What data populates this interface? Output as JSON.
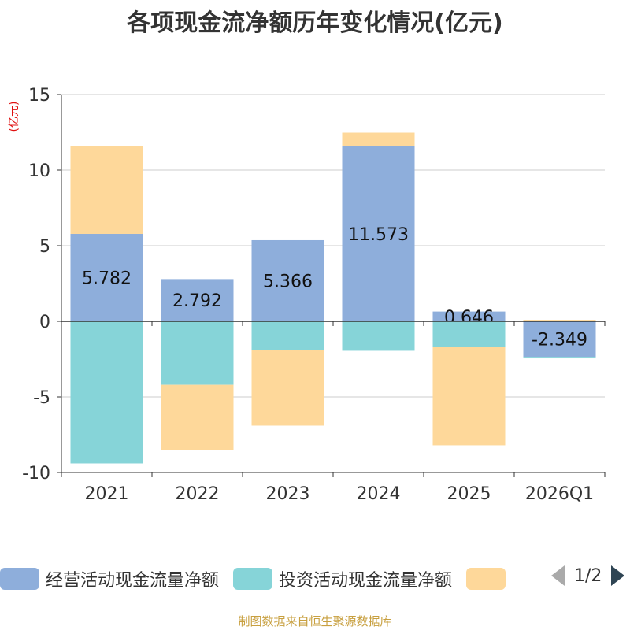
{
  "chart_data": {
    "type": "bar",
    "stacked": true,
    "title": "各项现金流净额历年变化情况(亿元)",
    "ylabel": "(亿元)",
    "ylim": [
      -10,
      15
    ],
    "yticks": [
      15,
      10,
      5,
      0,
      -5,
      -10
    ],
    "categories": [
      "2021",
      "2022",
      "2023",
      "2024",
      "2025",
      "2026Q1"
    ],
    "series": [
      {
        "name": "经营活动现金流量净额",
        "color": "#8eaedb",
        "values": [
          5.782,
          2.792,
          5.366,
          11.573,
          0.646,
          -2.349
        ],
        "labels": [
          "5.782",
          "2.792",
          "5.366",
          "11.573",
          "0.646",
          "-2.349"
        ]
      },
      {
        "name": "投资活动现金流量净额",
        "color": "#86d4d8",
        "values": [
          -9.4,
          -4.2,
          -1.9,
          -1.95,
          -1.7,
          -0.1
        ]
      },
      {
        "name": "",
        "color": "#fed89a",
        "values": [
          5.8,
          -4.3,
          -5.0,
          0.9,
          -6.5,
          0.1
        ]
      }
    ]
  },
  "legend": {
    "items": [
      {
        "label": "经营活动现金流量净额",
        "color": "#8eaedb"
      },
      {
        "label": "投资活动现金流量净额",
        "color": "#86d4d8"
      },
      {
        "label": "",
        "color": "#fed89a"
      }
    ],
    "page": "1/2"
  },
  "source": "制图数据来自恒生聚源数据库"
}
